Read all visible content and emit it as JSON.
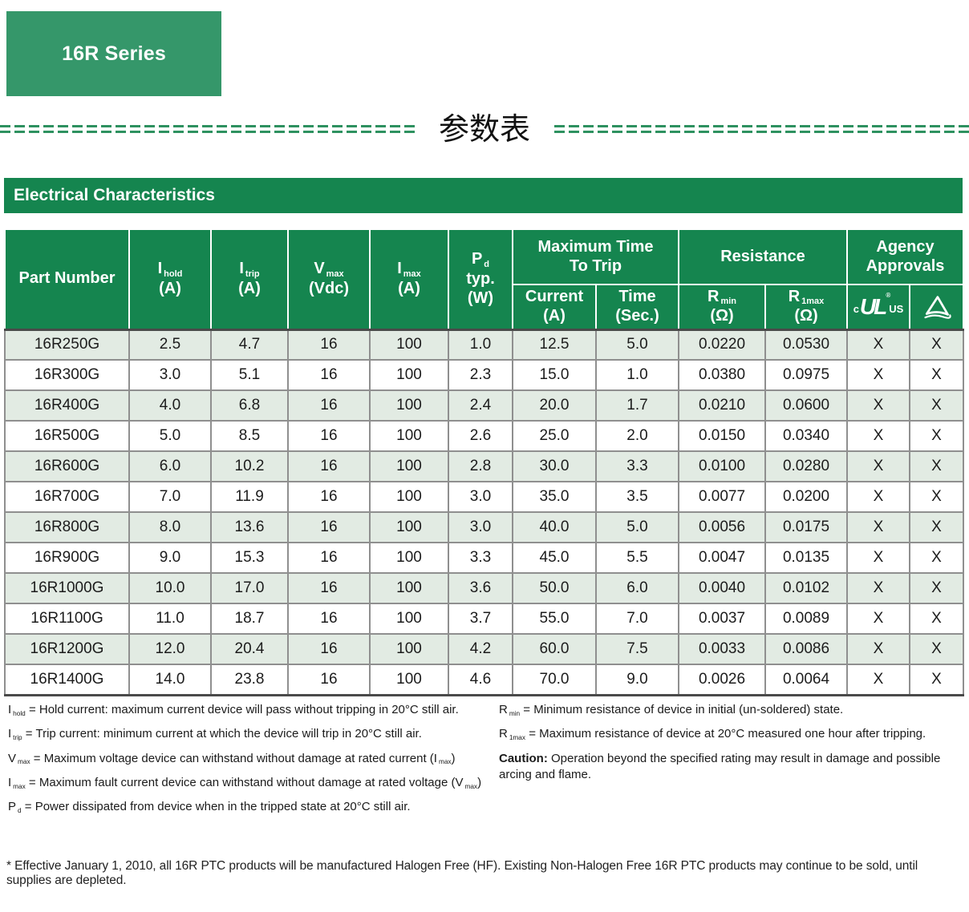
{
  "page": {
    "series_badge": "16R Series",
    "cn_title": "参数表",
    "section_bar_title": "Electrical Characteristics",
    "bottom_note": "* Effective January 1, 2010, all 16R PTC products will be manufactured Halogen Free (HF). Existing Non-Halogen Free 16R PTC products may continue to be sold, until supplies are depleted."
  },
  "colors": {
    "badge_green": "#35976A",
    "header_green": "#15854F",
    "dash_green": "#2E9160",
    "row_tint": "#E2EBE3",
    "grid_gray": "#8F8F8F"
  },
  "table": {
    "header": {
      "part_number": [
        [
          {
            "t": "Part Number"
          }
        ]
      ],
      "simple_cols": [
        [
          [
            {
              "t": "I"
            },
            {
              "s": "hold"
            }
          ],
          [
            {
              "t": "(A)"
            }
          ]
        ],
        [
          [
            {
              "t": "I"
            },
            {
              "s": "trip"
            }
          ],
          [
            {
              "t": "(A)"
            }
          ]
        ],
        [
          [
            {
              "t": "V"
            },
            {
              "s": "max"
            }
          ],
          [
            {
              "t": "(Vdc)"
            }
          ]
        ],
        [
          [
            {
              "t": "I"
            },
            {
              "s": "max"
            }
          ],
          [
            {
              "t": "(A)"
            }
          ]
        ],
        [
          [
            {
              "t": "P"
            },
            {
              "s": "d"
            }
          ],
          [
            {
              "t": "typ."
            }
          ],
          [
            {
              "t": "(W)"
            }
          ]
        ]
      ],
      "groups": [
        [
          [
            {
              "t": "Maximum Time"
            }
          ],
          [
            {
              "t": "To Trip"
            }
          ]
        ],
        [
          [
            {
              "t": "Resistance"
            }
          ]
        ],
        [
          [
            {
              "t": "Agency"
            }
          ],
          [
            {
              "t": "Approvals"
            }
          ]
        ]
      ],
      "sub_cols": [
        [
          [
            {
              "t": "Current"
            }
          ],
          [
            {
              "t": "(A)"
            }
          ]
        ],
        [
          [
            {
              "t": "Time"
            }
          ],
          [
            {
              "t": "(Sec.)"
            }
          ]
        ],
        [
          [
            {
              "t": "R"
            },
            {
              "s": "min"
            }
          ],
          [
            {
              "t": "(Ω)"
            }
          ]
        ],
        [
          [
            {
              "t": "R"
            },
            {
              "s": "1max"
            }
          ],
          [
            {
              "t": "(Ω)"
            }
          ]
        ]
      ],
      "ul_mark": {
        "c": "c",
        "letters": "UL",
        "reg": "®",
        "us": "US",
        "icon": "cUL-us-certification-mark"
      },
      "triangle_mark": {
        "icon": "triangle-certification-mark"
      }
    },
    "rows": [
      [
        "16R250G",
        "2.5",
        "4.7",
        "16",
        "100",
        "1.0",
        "12.5",
        "5.0",
        "0.0220",
        "0.0530",
        "X",
        "X"
      ],
      [
        "16R300G",
        "3.0",
        "5.1",
        "16",
        "100",
        "2.3",
        "15.0",
        "1.0",
        "0.0380",
        "0.0975",
        "X",
        "X"
      ],
      [
        "16R400G",
        "4.0",
        "6.8",
        "16",
        "100",
        "2.4",
        "20.0",
        "1.7",
        "0.0210",
        "0.0600",
        "X",
        "X"
      ],
      [
        "16R500G",
        "5.0",
        "8.5",
        "16",
        "100",
        "2.6",
        "25.0",
        "2.0",
        "0.0150",
        "0.0340",
        "X",
        "X"
      ],
      [
        "16R600G",
        "6.0",
        "10.2",
        "16",
        "100",
        "2.8",
        "30.0",
        "3.3",
        "0.0100",
        "0.0280",
        "X",
        "X"
      ],
      [
        "16R700G",
        "7.0",
        "11.9",
        "16",
        "100",
        "3.0",
        "35.0",
        "3.5",
        "0.0077",
        "0.0200",
        "X",
        "X"
      ],
      [
        "16R800G",
        "8.0",
        "13.6",
        "16",
        "100",
        "3.0",
        "40.0",
        "5.0",
        "0.0056",
        "0.0175",
        "X",
        "X"
      ],
      [
        "16R900G",
        "9.0",
        "15.3",
        "16",
        "100",
        "3.3",
        "45.0",
        "5.5",
        "0.0047",
        "0.0135",
        "X",
        "X"
      ],
      [
        "16R1000G",
        "10.0",
        "17.0",
        "16",
        "100",
        "3.6",
        "50.0",
        "6.0",
        "0.0040",
        "0.0102",
        "X",
        "X"
      ],
      [
        "16R1100G",
        "11.0",
        "18.7",
        "16",
        "100",
        "3.7",
        "55.0",
        "7.0",
        "0.0037",
        "0.0089",
        "X",
        "X"
      ],
      [
        "16R1200G",
        "12.0",
        "20.4",
        "16",
        "100",
        "4.2",
        "60.0",
        "7.5",
        "0.0033",
        "0.0086",
        "X",
        "X"
      ],
      [
        "16R1400G",
        "14.0",
        "23.8",
        "16",
        "100",
        "4.6",
        "70.0",
        "9.0",
        "0.0026",
        "0.0064",
        "X",
        "X"
      ]
    ]
  },
  "footnotes": {
    "left": [
      [
        {
          "t": "I"
        },
        {
          "s": "hold"
        },
        {
          "t": " = Hold current: maximum current device will pass without tripping in 20°C still air."
        }
      ],
      [
        {
          "t": "I"
        },
        {
          "s": "trip"
        },
        {
          "t": " = Trip current: minimum current at which the device will trip in 20°C still air."
        }
      ],
      [
        {
          "t": "V"
        },
        {
          "s": "max"
        },
        {
          "t": " = Maximum voltage device can withstand without damage at rated current (I"
        },
        {
          "s": "max"
        },
        {
          "t": ")"
        }
      ],
      [
        {
          "t": "I"
        },
        {
          "s": "max"
        },
        {
          "t": " = Maximum fault current device can withstand without damage at rated voltage (V"
        },
        {
          "s": "max"
        },
        {
          "t": ")"
        }
      ],
      [
        {
          "t": "P"
        },
        {
          "s": "d"
        },
        {
          "t": " = Power dissipated from device when in the tripped state at 20°C still air."
        }
      ]
    ],
    "right": [
      [
        {
          "t": "R"
        },
        {
          "s": "min"
        },
        {
          "t": " = Minimum resistance of device in initial (un-soldered) state."
        }
      ],
      [
        {
          "t": "R"
        },
        {
          "s": "1max"
        },
        {
          "t": " = Maximum resistance of device at 20°C measured one hour after tripping."
        }
      ],
      [
        {
          "b": "Caution:"
        },
        {
          "t": " Operation beyond the specified rating may result in damage and possible arcing and flame."
        }
      ]
    ]
  }
}
